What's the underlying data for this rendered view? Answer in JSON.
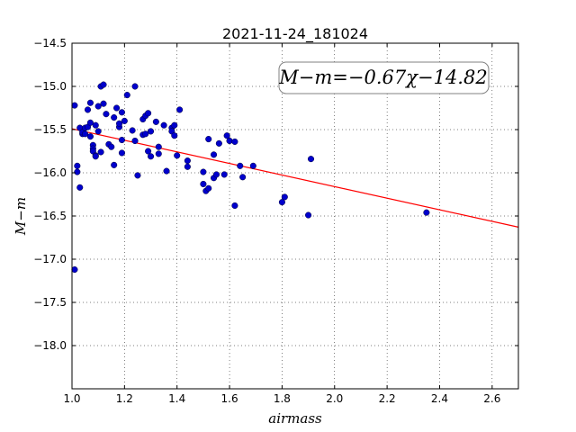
{
  "chart_data": {
    "type": "scatter",
    "title": "2021-11-24_181024",
    "xlabel": "airmass",
    "ylabel": "M−m",
    "xlim": [
      1.0,
      2.7
    ],
    "ylim": [
      -18.5,
      -14.5
    ],
    "y_inverted": true,
    "grid": true,
    "x_ticks": [
      "1.0",
      "1.2",
      "1.4",
      "1.6",
      "1.8",
      "2.0",
      "2.2",
      "2.4",
      "2.6"
    ],
    "y_ticks": [
      "−14.5",
      "−15.0",
      "−15.5",
      "−16.0",
      "−16.5",
      "−17.0",
      "−17.5",
      "−18.0"
    ],
    "x_tick_values": [
      1.0,
      1.2,
      1.4,
      1.6,
      1.8,
      2.0,
      2.2,
      2.4,
      2.6
    ],
    "y_tick_values": [
      -14.5,
      -15.0,
      -15.5,
      -16.0,
      -16.5,
      -17.0,
      -17.5,
      -18.0
    ],
    "annotation": "M−m=−0.67χ−14.82",
    "fit": {
      "slope": -0.67,
      "intercept": -14.82,
      "x_range": [
        1.0,
        2.7
      ],
      "color": "#ff0000"
    },
    "marker_color": "#0000cc",
    "points": [
      [
        1.01,
        -15.22
      ],
      [
        1.01,
        -17.12
      ],
      [
        1.02,
        -15.92
      ],
      [
        1.02,
        -15.99
      ],
      [
        1.03,
        -15.48
      ],
      [
        1.03,
        -16.17
      ],
      [
        1.04,
        -15.55
      ],
      [
        1.04,
        -15.53
      ],
      [
        1.05,
        -15.55
      ],
      [
        1.05,
        -15.48
      ],
      [
        1.06,
        -15.27
      ],
      [
        1.06,
        -15.47
      ],
      [
        1.07,
        -15.42
      ],
      [
        1.07,
        -15.19
      ],
      [
        1.07,
        -15.58
      ],
      [
        1.08,
        -15.68
      ],
      [
        1.08,
        -15.72
      ],
      [
        1.08,
        -15.75
      ],
      [
        1.09,
        -15.45
      ],
      [
        1.09,
        -15.8
      ],
      [
        1.09,
        -15.81
      ],
      [
        1.1,
        -15.23
      ],
      [
        1.1,
        -15.52
      ],
      [
        1.11,
        -15.76
      ],
      [
        1.11,
        -15.0
      ],
      [
        1.12,
        -14.98
      ],
      [
        1.12,
        -15.2
      ],
      [
        1.13,
        -15.32
      ],
      [
        1.14,
        -15.67
      ],
      [
        1.15,
        -15.7
      ],
      [
        1.16,
        -15.36
      ],
      [
        1.16,
        -15.91
      ],
      [
        1.17,
        -15.25
      ],
      [
        1.18,
        -15.47
      ],
      [
        1.18,
        -15.43
      ],
      [
        1.19,
        -15.3
      ],
      [
        1.19,
        -15.62
      ],
      [
        1.19,
        -15.77
      ],
      [
        1.2,
        -15.4
      ],
      [
        1.21,
        -15.1
      ],
      [
        1.23,
        -15.51
      ],
      [
        1.24,
        -15.0
      ],
      [
        1.24,
        -15.63
      ],
      [
        1.25,
        -16.03
      ],
      [
        1.27,
        -15.38
      ],
      [
        1.27,
        -15.56
      ],
      [
        1.28,
        -15.34
      ],
      [
        1.28,
        -15.55
      ],
      [
        1.29,
        -15.75
      ],
      [
        1.29,
        -15.31
      ],
      [
        1.3,
        -15.52
      ],
      [
        1.3,
        -15.81
      ],
      [
        1.32,
        -15.41
      ],
      [
        1.33,
        -15.7
      ],
      [
        1.33,
        -15.78
      ],
      [
        1.35,
        -15.45
      ],
      [
        1.36,
        -15.98
      ],
      [
        1.38,
        -15.48
      ],
      [
        1.38,
        -15.52
      ],
      [
        1.39,
        -15.45
      ],
      [
        1.39,
        -15.57
      ],
      [
        1.4,
        -15.8
      ],
      [
        1.41,
        -15.27
      ],
      [
        1.44,
        -15.86
      ],
      [
        1.44,
        -15.93
      ],
      [
        1.5,
        -15.99
      ],
      [
        1.5,
        -16.13
      ],
      [
        1.51,
        -16.21
      ],
      [
        1.52,
        -16.18
      ],
      [
        1.52,
        -15.61
      ],
      [
        1.54,
        -15.79
      ],
      [
        1.54,
        -16.06
      ],
      [
        1.55,
        -16.02
      ],
      [
        1.56,
        -15.66
      ],
      [
        1.58,
        -16.02
      ],
      [
        1.59,
        -15.57
      ],
      [
        1.6,
        -15.63
      ],
      [
        1.62,
        -16.38
      ],
      [
        1.62,
        -15.64
      ],
      [
        1.64,
        -15.92
      ],
      [
        1.65,
        -16.05
      ],
      [
        1.69,
        -15.92
      ],
      [
        1.8,
        -16.34
      ],
      [
        1.81,
        -16.28
      ],
      [
        1.9,
        -16.49
      ],
      [
        1.91,
        -15.84
      ],
      [
        2.35,
        -16.46
      ]
    ]
  }
}
